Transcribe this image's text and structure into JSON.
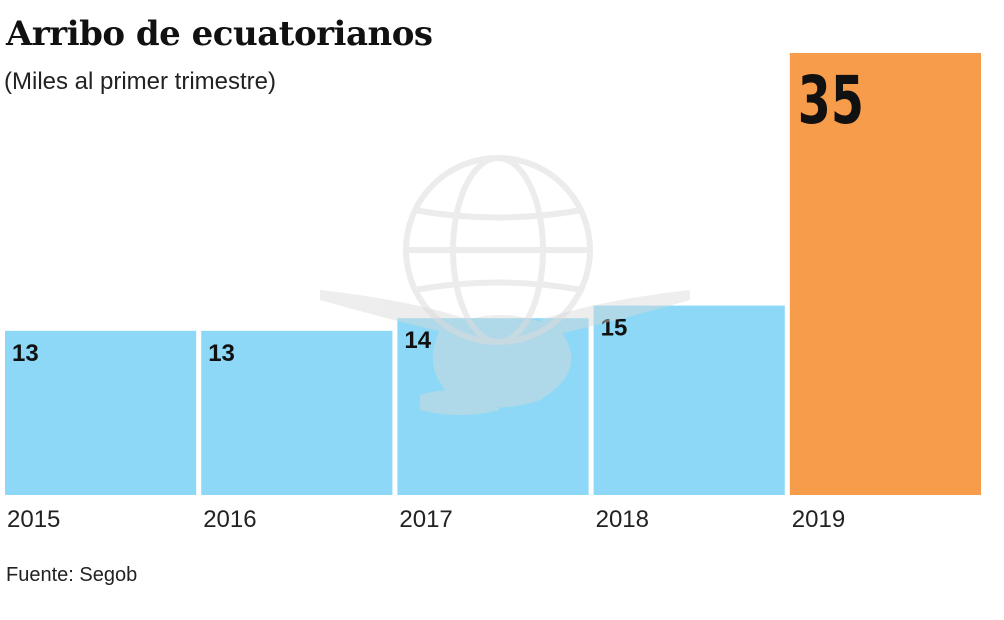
{
  "title": "Arribo de ecuatorianos",
  "subtitle": "(Miles al primer trimestre)",
  "source": "Fuente: Segob",
  "colors": {
    "bar_default": "#8dd8f6",
    "bar_highlight": "#f79c4a",
    "text": "#111111"
  },
  "chart_data": {
    "type": "bar",
    "categories": [
      "2015",
      "2016",
      "2017",
      "2018",
      "2019"
    ],
    "values": [
      13,
      13,
      14,
      15,
      35
    ],
    "data_labels": [
      "13",
      "13",
      "14",
      "15",
      "35"
    ],
    "highlight_index": 4,
    "title": "Arribo de ecuatorianos",
    "subtitle": "(Miles al primer trimestre)",
    "xlabel": "",
    "ylabel": "",
    "ylim": [
      0,
      35
    ],
    "grid": false,
    "legend": "none"
  }
}
